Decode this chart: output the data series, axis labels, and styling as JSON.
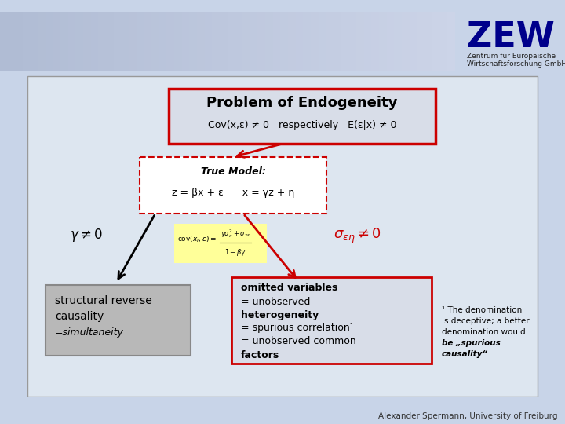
{
  "bg_outer_color": "#c8d4e8",
  "bg_slide_color": "#dde6f0",
  "zew_color": "#00008B",
  "title_text": "Problem of Endogeneity",
  "subtitle_text": "Cov(x,ε) ≠ 0   respectively   E(ε|x) ≠ 0",
  "true_model_title": "True Model:",
  "true_model_eq": "z = βx + ε      x = γz + η",
  "gamma_text": "γ ≠ 0",
  "footer_text": "Alexander Spermann, University of Freiburg",
  "title_box_color": "#cc0000",
  "omit_box_color": "#cc0000",
  "struct_box_facecolor": "#b8b8b8",
  "struct_box_edgecolor": "#888888",
  "formula_bg": "#ffff99",
  "footnote_lines": [
    "¹ The denomination",
    "is deceptive; a better",
    "denomination would",
    "be „spurious",
    "causality“"
  ]
}
